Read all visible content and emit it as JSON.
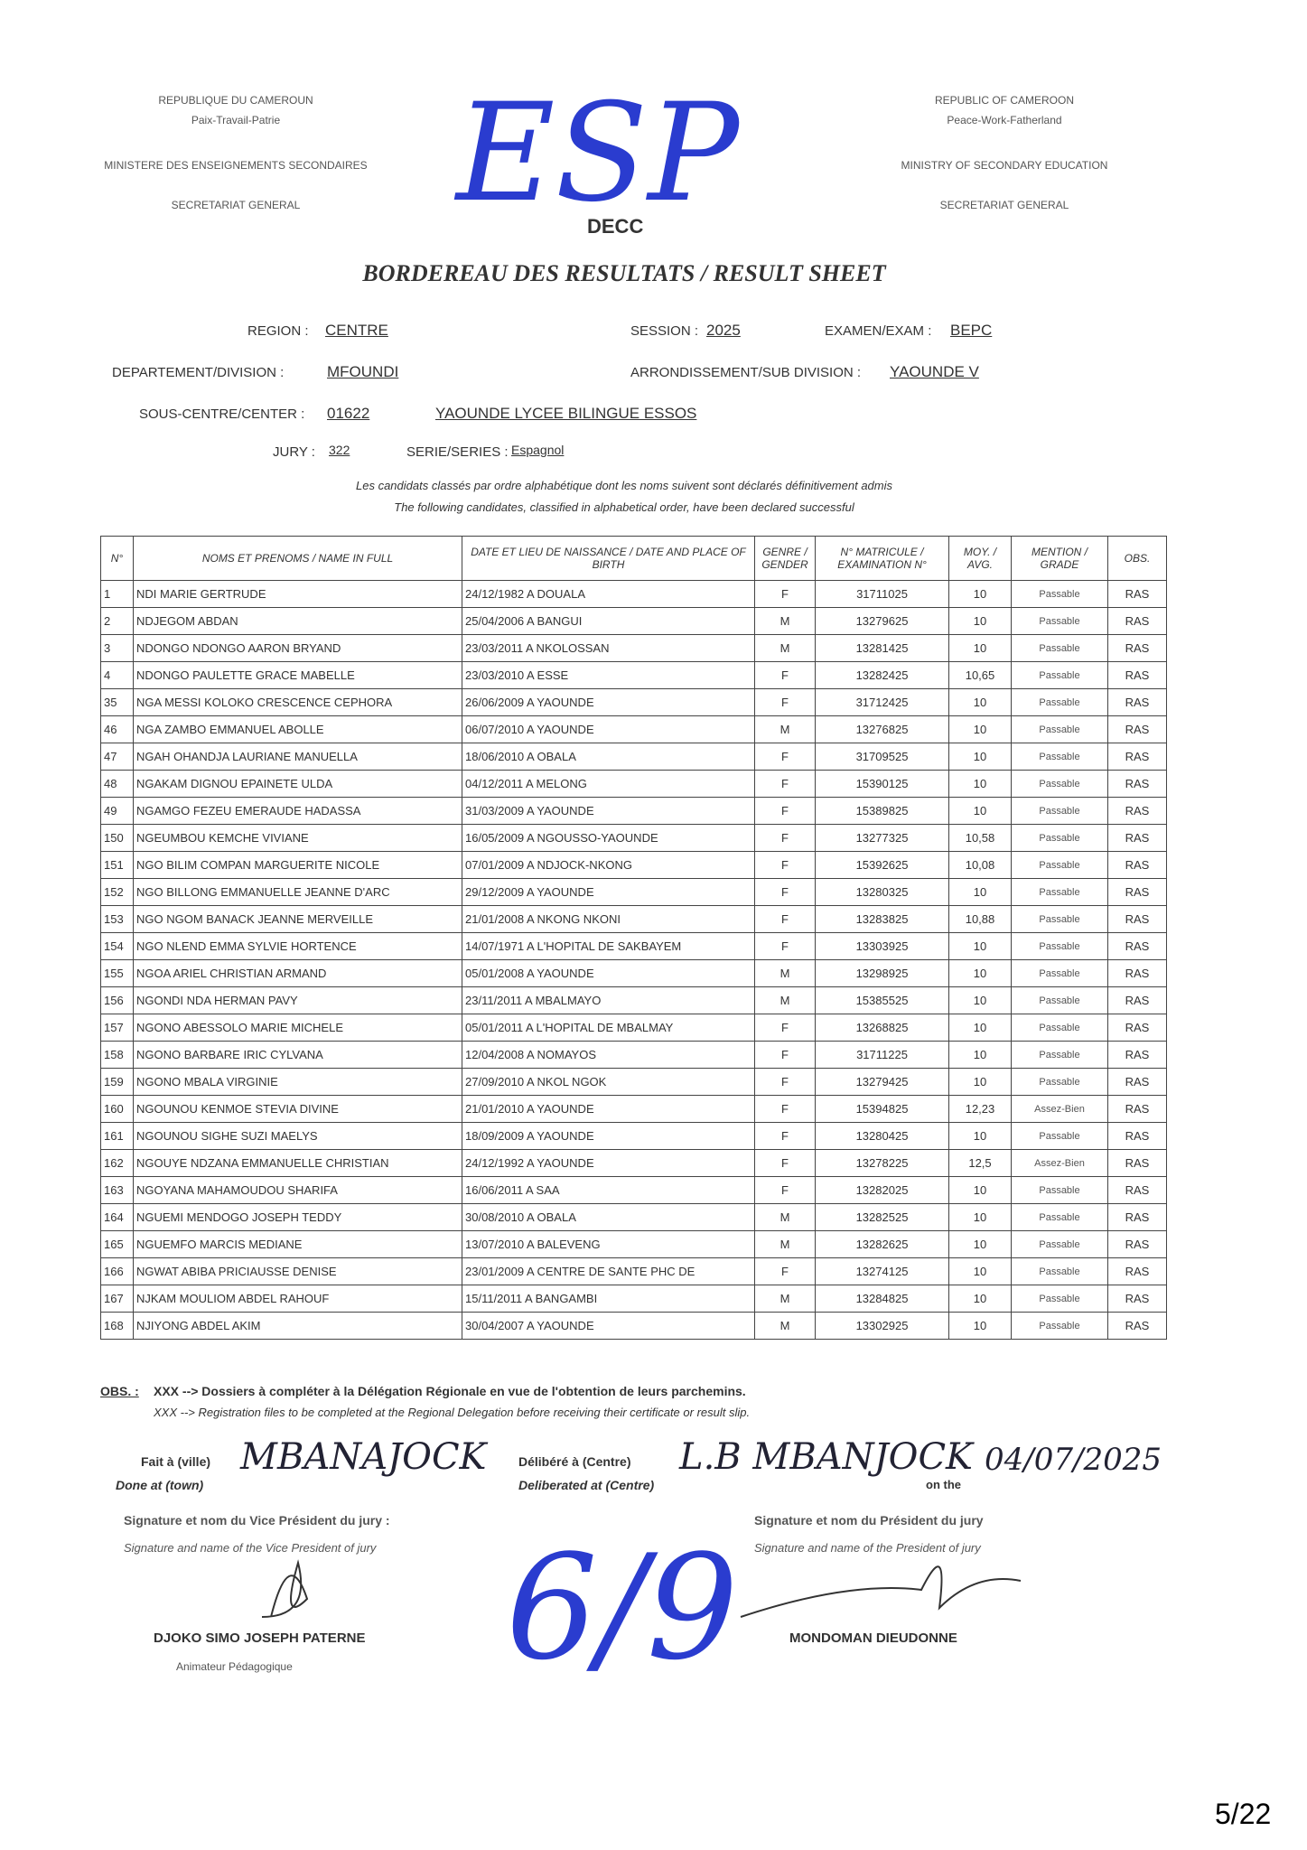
{
  "header": {
    "left": [
      "REPUBLIQUE DU CAMEROUN",
      "Paix-Travail-Patrie",
      "MINISTERE DES ENSEIGNEMENTS SECONDAIRES",
      "SECRETARIAT GENERAL"
    ],
    "right": [
      "REPUBLIC OF CAMEROON",
      "Peace-Work-Fatherland",
      "MINISTRY OF SECONDARY EDUCATION",
      "SECRETARIAT GENERAL"
    ],
    "stamp": "ESP",
    "stamp_sub": "DECC",
    "title": "BORDEREAU DES RESULTATS / RESULT SHEET"
  },
  "fields": {
    "region_label": "REGION :",
    "region": "CENTRE",
    "session_label": "SESSION :",
    "session": "2025",
    "exam_label": "EXAMEN/EXAM :",
    "exam": "BEPC",
    "division_label": "DEPARTEMENT/DIVISION :",
    "division": "MFOUNDI",
    "subdivision_label": "ARRONDISSEMENT/SUB DIVISION :",
    "subdivision": "YAOUNDE V",
    "center_label": "SOUS-CENTRE/CENTER :",
    "center_code": "01622",
    "center_name": "YAOUNDE LYCEE BILINGUE ESSOS",
    "jury_label": "JURY :",
    "jury": "322",
    "series_label": "SERIE/SERIES :",
    "series": "Espagnol"
  },
  "notes": [
    "Les candidats classés par ordre alphabétique dont les noms suivent sont déclarés définitivement admis",
    "The following candidates, classified in alphabetical order, have been declared successful"
  ],
  "table": {
    "headers": [
      "N°",
      "NOMS ET PRENOMS / NAME IN FULL",
      "DATE ET LIEU DE NAISSANCE / DATE AND PLACE OF BIRTH",
      "GENRE / GENDER",
      "N° MATRICULE / EXAMINATION N°",
      "MOY. / AVG.",
      "MENTION / GRADE",
      "OBS."
    ],
    "rows": [
      [
        "1",
        "NDI MARIE GERTRUDE",
        "24/12/1982 A DOUALA",
        "F",
        "31711025",
        "10",
        "Passable",
        "RAS"
      ],
      [
        "2",
        "NDJEGOM ABDAN",
        "25/04/2006 A BANGUI",
        "M",
        "13279625",
        "10",
        "Passable",
        "RAS"
      ],
      [
        "3",
        "NDONGO NDONGO AARON BRYAND",
        "23/03/2011 A NKOLOSSAN",
        "M",
        "13281425",
        "10",
        "Passable",
        "RAS"
      ],
      [
        "4",
        "NDONGO PAULETTE GRACE MABELLE",
        "23/03/2010 A ESSE",
        "F",
        "13282425",
        "10,65",
        "Passable",
        "RAS"
      ],
      [
        "35",
        "NGA MESSI KOLOKO CRESCENCE CEPHORA",
        "26/06/2009 A YAOUNDE",
        "F",
        "31712425",
        "10",
        "Passable",
        "RAS"
      ],
      [
        "46",
        "NGA ZAMBO EMMANUEL ABOLLE",
        "06/07/2010 A YAOUNDE",
        "M",
        "13276825",
        "10",
        "Passable",
        "RAS"
      ],
      [
        "47",
        "NGAH OHANDJA LAURIANE MANUELLA",
        "18/06/2010 A OBALA",
        "F",
        "31709525",
        "10",
        "Passable",
        "RAS"
      ],
      [
        "48",
        "NGAKAM DIGNOU EPAINETE ULDA",
        "04/12/2011 A MELONG",
        "F",
        "15390125",
        "10",
        "Passable",
        "RAS"
      ],
      [
        "49",
        "NGAMGO FEZEU EMERAUDE HADASSA",
        "31/03/2009 A YAOUNDE",
        "F",
        "15389825",
        "10",
        "Passable",
        "RAS"
      ],
      [
        "150",
        "NGEUMBOU KEMCHE VIVIANE",
        "16/05/2009 A NGOUSSO-YAOUNDE",
        "F",
        "13277325",
        "10,58",
        "Passable",
        "RAS"
      ],
      [
        "151",
        "NGO BILIM COMPAN MARGUERITE NICOLE",
        "07/01/2009 A NDJOCK-NKONG",
        "F",
        "15392625",
        "10,08",
        "Passable",
        "RAS"
      ],
      [
        "152",
        "NGO BILLONG EMMANUELLE JEANNE D'ARC",
        "29/12/2009 A YAOUNDE",
        "F",
        "13280325",
        "10",
        "Passable",
        "RAS"
      ],
      [
        "153",
        "NGO NGOM BANACK JEANNE MERVEILLE",
        "21/01/2008 A NKONG NKONI",
        "F",
        "13283825",
        "10,88",
        "Passable",
        "RAS"
      ],
      [
        "154",
        "NGO NLEND EMMA SYLVIE HORTENCE",
        "14/07/1971 A L'HOPITAL DE SAKBAYEM",
        "F",
        "13303925",
        "10",
        "Passable",
        "RAS"
      ],
      [
        "155",
        "NGOA ARIEL CHRISTIAN ARMAND",
        "05/01/2008 A YAOUNDE",
        "M",
        "13298925",
        "10",
        "Passable",
        "RAS"
      ],
      [
        "156",
        "NGONDI NDA HERMAN PAVY",
        "23/11/2011 A MBALMAYO",
        "M",
        "15385525",
        "10",
        "Passable",
        "RAS"
      ],
      [
        "157",
        "NGONO ABESSOLO MARIE MICHELE",
        "05/01/2011 A L'HOPITAL DE MBALMAY",
        "F",
        "13268825",
        "10",
        "Passable",
        "RAS"
      ],
      [
        "158",
        "NGONO BARBARE IRIC CYLVANA",
        "12/04/2008 A NOMAYOS",
        "F",
        "31711225",
        "10",
        "Passable",
        "RAS"
      ],
      [
        "159",
        "NGONO MBALA VIRGINIE",
        "27/09/2010 A NKOL NGOK",
        "F",
        "13279425",
        "10",
        "Passable",
        "RAS"
      ],
      [
        "160",
        "NGOUNOU KENMOE STEVIA DIVINE",
        "21/01/2010 A YAOUNDE",
        "F",
        "15394825",
        "12,23",
        "Assez-Bien",
        "RAS"
      ],
      [
        "161",
        "NGOUNOU SIGHE SUZI MAELYS",
        "18/09/2009 A YAOUNDE",
        "F",
        "13280425",
        "10",
        "Passable",
        "RAS"
      ],
      [
        "162",
        "NGOUYE NDZANA EMMANUELLE CHRISTIAN",
        "24/12/1992 A YAOUNDE",
        "F",
        "13278225",
        "12,5",
        "Assez-Bien",
        "RAS"
      ],
      [
        "163",
        "NGOYANA MAHAMOUDOU SHARIFA",
        "16/06/2011 A SAA",
        "F",
        "13282025",
        "10",
        "Passable",
        "RAS"
      ],
      [
        "164",
        "NGUEMI MENDOGO JOSEPH TEDDY",
        "30/08/2010 A OBALA",
        "M",
        "13282525",
        "10",
        "Passable",
        "RAS"
      ],
      [
        "165",
        "NGUEMFO MARCIS MEDIANE",
        "13/07/2010 A BALEVENG",
        "M",
        "13282625",
        "10",
        "Passable",
        "RAS"
      ],
      [
        "166",
        "NGWAT ABIBA PRICIAUSSE DENISE",
        "23/01/2009 A CENTRE DE SANTE PHC DE",
        "F",
        "13274125",
        "10",
        "Passable",
        "RAS"
      ],
      [
        "167",
        "NJKAM MOULIOM ABDEL RAHOUF",
        "15/11/2011 A BANGAMBI",
        "M",
        "13284825",
        "10",
        "Passable",
        "RAS"
      ],
      [
        "168",
        "NJIYONG ABDEL AKIM",
        "30/04/2007 A YAOUNDE",
        "M",
        "13302925",
        "10",
        "Passable",
        "RAS"
      ]
    ]
  },
  "obs": {
    "label": "OBS. :",
    "fr": "XXX --> Dossiers à compléter à la Délégation Régionale en vue de l'obtention de leurs parchemins.",
    "en": "XXX --> Registration files to be completed at the Regional Delegation before receiving their certificate or result slip."
  },
  "footer": {
    "done_label": "Fait à (ville)",
    "done_label_en": "Done at (town)",
    "done_value": "MBANAJOCK",
    "delib_label": "Délibéré à (Centre)",
    "delib_label_en": "Deliberated at (Centre)",
    "delib_value": "L.B MBANJOCK",
    "on_the": "on the",
    "date": "04/07/2025",
    "vp_label": "Signature et nom du Vice Président du jury :",
    "vp_label_en": "Signature and name of the Vice President of jury",
    "vp_name": "DJOKO SIMO JOSEPH PATERNE",
    "vp_role": "Animateur Pédagogique",
    "p_label": "Signature et nom du Président du jury",
    "p_label_en": "Signature and name of the President of jury",
    "p_name": "MONDOMAN DIEUDONNE",
    "mark": "6/9",
    "page": "5/22"
  }
}
